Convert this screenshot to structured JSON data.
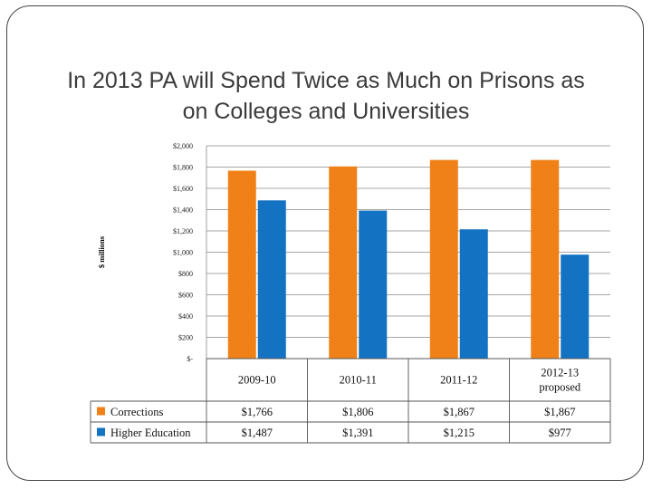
{
  "slide": {
    "title_line1": "In 2013 PA will Spend Twice as Much on Prisons as",
    "title_line2": "on Colleges and Universities"
  },
  "chart_data": {
    "type": "bar",
    "title": "In 2013 PA will Spend Twice as Much on Prisons as on Colleges and Universities",
    "ylabel": "$ millions",
    "xlabel": "",
    "ylim": [
      0,
      2000
    ],
    "y_ticks": [
      0,
      200,
      400,
      600,
      800,
      1000,
      1200,
      1400,
      1600,
      1800,
      2000
    ],
    "y_tick_labels": [
      "$-",
      "$200",
      "$400",
      "$600",
      "$800",
      "$1,000",
      "$1,200",
      "$1,400",
      "$1,600",
      "$1,800",
      "$2,000"
    ],
    "grid": true,
    "legend": "data-table",
    "categories": [
      "2009-10",
      "2010-11",
      "2011-12",
      "2012-13 proposed"
    ],
    "category_lines": [
      [
        "2009-10"
      ],
      [
        "2010-11"
      ],
      [
        "2011-12"
      ],
      [
        "2012-13",
        "proposed"
      ]
    ],
    "series": [
      {
        "name": "Corrections",
        "color": "#f08119",
        "values": [
          1766,
          1806,
          1867,
          1867
        ],
        "labels": [
          "$1,766",
          "$1,806",
          "$1,867",
          "$1,867"
        ]
      },
      {
        "name": "Higher Education",
        "color": "#1372c2",
        "values": [
          1487,
          1391,
          1215,
          977
        ],
        "labels": [
          "$1,487",
          "$1,391",
          "$1,215",
          "$977"
        ]
      }
    ]
  }
}
